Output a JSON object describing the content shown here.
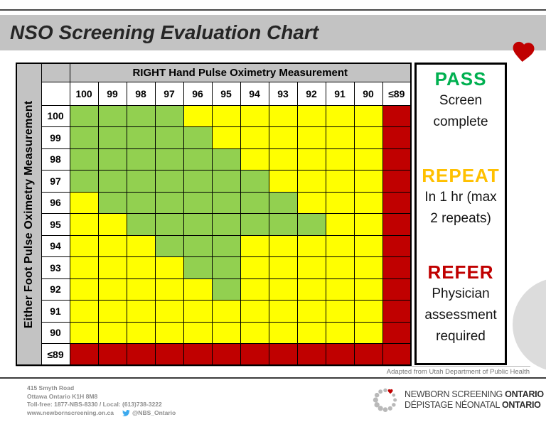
{
  "slide_title": "NSO Screening Evaluation Chart",
  "chart_data": {
    "type": "heatmap",
    "title": "NSO Screening Evaluation Chart",
    "x_axis_label": "RIGHT Hand Pulse Oximetry Measurement",
    "y_axis_label": "Either Foot Pulse Oximetry Measurement",
    "x_categories": [
      "100",
      "99",
      "98",
      "97",
      "96",
      "95",
      "94",
      "93",
      "92",
      "91",
      "90",
      "≤89"
    ],
    "y_categories": [
      "100",
      "99",
      "98",
      "97",
      "96",
      "95",
      "94",
      "93",
      "92",
      "91",
      "90",
      "≤89"
    ],
    "values": [
      [
        "G",
        "G",
        "G",
        "G",
        "Y",
        "Y",
        "Y",
        "Y",
        "Y",
        "Y",
        "Y",
        "R"
      ],
      [
        "G",
        "G",
        "G",
        "G",
        "G",
        "Y",
        "Y",
        "Y",
        "Y",
        "Y",
        "Y",
        "R"
      ],
      [
        "G",
        "G",
        "G",
        "G",
        "G",
        "G",
        "Y",
        "Y",
        "Y",
        "Y",
        "Y",
        "R"
      ],
      [
        "G",
        "G",
        "G",
        "G",
        "G",
        "G",
        "G",
        "Y",
        "Y",
        "Y",
        "Y",
        "R"
      ],
      [
        "Y",
        "G",
        "G",
        "G",
        "G",
        "G",
        "G",
        "G",
        "Y",
        "Y",
        "Y",
        "R"
      ],
      [
        "Y",
        "Y",
        "G",
        "G",
        "G",
        "G",
        "G",
        "G",
        "G",
        "Y",
        "Y",
        "R"
      ],
      [
        "Y",
        "Y",
        "Y",
        "G",
        "G",
        "G",
        "Y",
        "Y",
        "Y",
        "Y",
        "Y",
        "R"
      ],
      [
        "Y",
        "Y",
        "Y",
        "Y",
        "G",
        "G",
        "Y",
        "Y",
        "Y",
        "Y",
        "Y",
        "R"
      ],
      [
        "Y",
        "Y",
        "Y",
        "Y",
        "Y",
        "G",
        "Y",
        "Y",
        "Y",
        "Y",
        "Y",
        "R"
      ],
      [
        "Y",
        "Y",
        "Y",
        "Y",
        "Y",
        "Y",
        "Y",
        "Y",
        "Y",
        "Y",
        "Y",
        "R"
      ],
      [
        "Y",
        "Y",
        "Y",
        "Y",
        "Y",
        "Y",
        "Y",
        "Y",
        "Y",
        "Y",
        "Y",
        "R"
      ],
      [
        "R",
        "R",
        "R",
        "R",
        "R",
        "R",
        "R",
        "R",
        "R",
        "R",
        "R",
        "R"
      ]
    ],
    "value_legend": {
      "G": "PASS",
      "Y": "REPEAT",
      "R": "REFER"
    },
    "colors": {
      "G": "#92D050",
      "Y": "#FFFF00",
      "R": "#C00000"
    },
    "grid": true,
    "legend_position": "right"
  },
  "legend_panel": {
    "items": [
      {
        "label": "PASS",
        "color": "#00B050",
        "desc": "Screen complete"
      },
      {
        "label": "REPEAT",
        "color": "#FFC000",
        "desc": "In 1 hr (max 2 repeats)"
      },
      {
        "label": "REFER",
        "color": "#C00000",
        "desc": "Physician assessment required"
      }
    ]
  },
  "caption": "Adapted from Utah Department of Public Health",
  "footer": {
    "address1": "415 Smyth Road",
    "address2": "Ottawa Ontario K1H 8M8",
    "phone_line": "Toll-free: 1877-NBS-8330 / Local: (613)738-3222",
    "website": "www.newbornscreening.on.ca",
    "twitter_handle": "@NBS_Ontario",
    "logo": {
      "line1": "NEWBORN SCREENING",
      "line1_bold": "ONTARIO",
      "line2": "DÉPISTAGE NÉONATAL",
      "line2_bold": "ONTARIO"
    }
  },
  "icons": {
    "heart": "♥",
    "twitter_bird": "twitter-bird"
  }
}
